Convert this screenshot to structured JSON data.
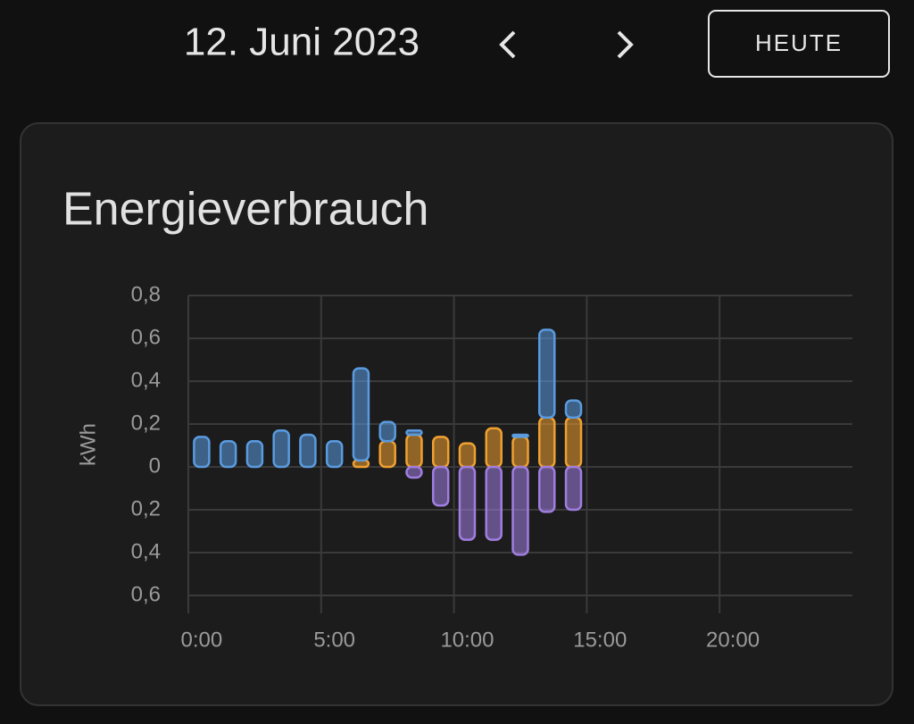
{
  "header": {
    "date": "12. Juni 2023",
    "button": "HEUTE"
  },
  "chart_data": {
    "type": "bar",
    "stacked": true,
    "title": "Energieverbrauch",
    "y_label": "kWh",
    "x": [
      0,
      1,
      2,
      3,
      4,
      5,
      6,
      7,
      8,
      9,
      10,
      11,
      12,
      13,
      14
    ],
    "xlim": [
      -0.5,
      24.5
    ],
    "xticks": [
      {
        "value": 0,
        "label": "0:00"
      },
      {
        "value": 5,
        "label": "5:00"
      },
      {
        "value": 10,
        "label": "10:00"
      },
      {
        "value": 15,
        "label": "15:00"
      },
      {
        "value": 20,
        "label": "20:00"
      }
    ],
    "ylim": [
      -0.6,
      0.8
    ],
    "yticks": [
      {
        "value": 0.8,
        "label": "0,8"
      },
      {
        "value": 0.6,
        "label": "0,6"
      },
      {
        "value": 0.4,
        "label": "0,4"
      },
      {
        "value": 0.2,
        "label": "0,2"
      },
      0,
      {
        "value": -0.2,
        "label": "0,2"
      },
      {
        "value": -0.4,
        "label": "0,4"
      },
      {
        "value": -0.6,
        "label": "0,6"
      }
    ],
    "grid": true,
    "series": [
      {
        "color": "#f0a030",
        "values": [
          0,
          0,
          0,
          0,
          0,
          0,
          0.03,
          0.12,
          0.15,
          0.14,
          0.11,
          0.18,
          0.14,
          0.23,
          0.23
        ]
      },
      {
        "color": "#5a9be0",
        "values": [
          0.14,
          0.12,
          0.12,
          0.17,
          0.15,
          0.12,
          0.43,
          0.09,
          0.02,
          0,
          0,
          0,
          0.01,
          0.41,
          0.08
        ]
      },
      {
        "color": "#a07ee0",
        "values": [
          0,
          0,
          0,
          0,
          0,
          0,
          0,
          0,
          -0.05,
          -0.18,
          -0.34,
          -0.34,
          -0.41,
          -0.21,
          -0.2
        ]
      }
    ]
  }
}
